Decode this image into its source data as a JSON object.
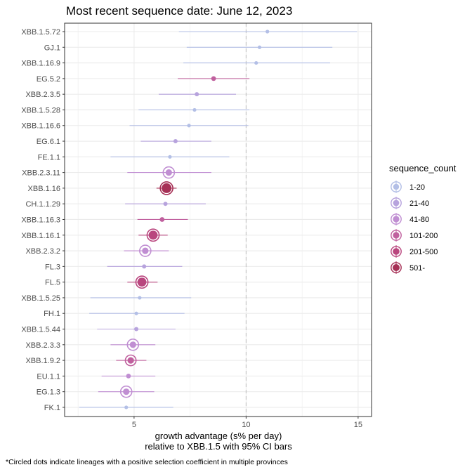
{
  "chart_data": {
    "type": "scatter",
    "title": "Most recent sequence date: June 12, 2023",
    "xlabel_line1": "growth advantage (s% per day)",
    "xlabel_line2": "relative to  XBB.1.5  with 95% CI bars",
    "caption": "*Circled dots indicate lineages with a positive selection coefficient in multiple provinces",
    "xlim": [
      1.9,
      15.6
    ],
    "xticks": [
      "5",
      "10",
      "15"
    ],
    "reference_line_x": 10,
    "grid": true,
    "legend": {
      "title": "sequence_count",
      "position": "right",
      "entries": [
        {
          "label": "1-20",
          "color": "#b3bfe6"
        },
        {
          "label": "21-40",
          "color": "#b7a3dd"
        },
        {
          "label": "41-80",
          "color": "#c08ed2"
        },
        {
          "label": "101-200",
          "color": "#c0609e"
        },
        {
          "label": "201-500",
          "color": "#b9467e"
        },
        {
          "label": "501-",
          "color": "#a63056"
        }
      ]
    },
    "points": [
      {
        "lineage": "XBB.1.5.72",
        "value": 10.95,
        "ci_low": 7.0,
        "ci_high": 14.95,
        "count_bin": "1-20",
        "circled": false
      },
      {
        "lineage": "GJ.1",
        "value": 10.6,
        "ci_low": 7.35,
        "ci_high": 13.85,
        "count_bin": "1-20",
        "circled": false
      },
      {
        "lineage": "XBB.1.16.9",
        "value": 10.45,
        "ci_low": 7.2,
        "ci_high": 13.75,
        "count_bin": "1-20",
        "circled": false
      },
      {
        "lineage": "EG.5.2",
        "value": 8.55,
        "ci_low": 6.95,
        "ci_high": 10.15,
        "count_bin": "101-200",
        "circled": false
      },
      {
        "lineage": "XBB.2.3.5",
        "value": 7.8,
        "ci_low": 6.1,
        "ci_high": 9.55,
        "count_bin": "21-40",
        "circled": false
      },
      {
        "lineage": "XBB.1.5.28",
        "value": 7.7,
        "ci_low": 5.2,
        "ci_high": 10.15,
        "count_bin": "1-20",
        "circled": false
      },
      {
        "lineage": "XBB.1.16.6",
        "value": 7.45,
        "ci_low": 4.8,
        "ci_high": 10.1,
        "count_bin": "1-20",
        "circled": false
      },
      {
        "lineage": "EG.6.1",
        "value": 6.85,
        "ci_low": 5.3,
        "ci_high": 8.45,
        "count_bin": "21-40",
        "circled": false
      },
      {
        "lineage": "FE.1.1",
        "value": 6.6,
        "ci_low": 3.95,
        "ci_high": 9.25,
        "count_bin": "1-20",
        "circled": false
      },
      {
        "lineage": "XBB.2.3.11",
        "value": 6.55,
        "ci_low": 4.7,
        "ci_high": 8.45,
        "count_bin": "41-80",
        "circled": true
      },
      {
        "lineage": "XBB.1.16",
        "value": 6.45,
        "ci_low": 6.0,
        "ci_high": 6.9,
        "count_bin": "501-",
        "circled": true
      },
      {
        "lineage": "CH.1.1.29",
        "value": 6.4,
        "ci_low": 4.6,
        "ci_high": 8.2,
        "count_bin": "21-40",
        "circled": false
      },
      {
        "lineage": "XBB.1.16.3",
        "value": 6.25,
        "ci_low": 5.15,
        "ci_high": 7.4,
        "count_bin": "101-200",
        "circled": false
      },
      {
        "lineage": "XBB.1.16.1",
        "value": 5.85,
        "ci_low": 5.2,
        "ci_high": 6.5,
        "count_bin": "201-500",
        "circled": true
      },
      {
        "lineage": "XBB.2.3.2",
        "value": 5.5,
        "ci_low": 4.55,
        "ci_high": 6.55,
        "count_bin": "41-80",
        "circled": true
      },
      {
        "lineage": "FL.3",
        "value": 5.45,
        "ci_low": 3.8,
        "ci_high": 7.15,
        "count_bin": "21-40",
        "circled": false
      },
      {
        "lineage": "FL.5",
        "value": 5.35,
        "ci_low": 4.7,
        "ci_high": 6.05,
        "count_bin": "201-500",
        "circled": true
      },
      {
        "lineage": "XBB.1.5.25",
        "value": 5.25,
        "ci_low": 3.05,
        "ci_high": 7.55,
        "count_bin": "1-20",
        "circled": false
      },
      {
        "lineage": "FH.1",
        "value": 5.1,
        "ci_low": 3.0,
        "ci_high": 7.25,
        "count_bin": "1-20",
        "circled": false
      },
      {
        "lineage": "XBB.1.5.44",
        "value": 5.1,
        "ci_low": 3.35,
        "ci_high": 6.85,
        "count_bin": "21-40",
        "circled": false
      },
      {
        "lineage": "XBB.2.3.3",
        "value": 4.95,
        "ci_low": 3.95,
        "ci_high": 5.95,
        "count_bin": "41-80",
        "circled": true
      },
      {
        "lineage": "XBB.1.9.2",
        "value": 4.85,
        "ci_low": 4.2,
        "ci_high": 5.55,
        "count_bin": "101-200",
        "circled": true
      },
      {
        "lineage": "EU.1.1",
        "value": 4.75,
        "ci_low": 3.55,
        "ci_high": 5.95,
        "count_bin": "41-80",
        "circled": false
      },
      {
        "lineage": "EG.1.3",
        "value": 4.65,
        "ci_low": 3.4,
        "ci_high": 5.9,
        "count_bin": "41-80",
        "circled": true
      },
      {
        "lineage": "FK.1",
        "value": 4.65,
        "ci_low": 2.55,
        "ci_high": 6.75,
        "count_bin": "1-20",
        "circled": false
      }
    ]
  }
}
